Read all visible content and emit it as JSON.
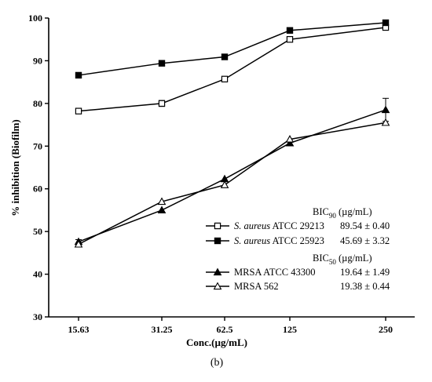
{
  "chart_data": {
    "type": "line",
    "categories": [
      "15.63",
      "31.25",
      "62.5",
      "125",
      "250"
    ],
    "ylabel": "% inhibition (Biofilm)",
    "xlabel": "Conc.(µg/mL)",
    "ylim": [
      30,
      100
    ],
    "yticks": [
      "30",
      "40",
      "50",
      "60",
      "70",
      "80",
      "90",
      "100"
    ],
    "panel_label": "(b)",
    "legend_header_90": {
      "prefix": "BIC",
      "sub": "90",
      "suffix": " (µg/mL)"
    },
    "legend_header_50": {
      "prefix": "BIC",
      "sub": "50",
      "suffix": " (µg/mL)"
    },
    "series": [
      {
        "name_italic": "S. aureus",
        "name_rest": " ATCC 29213",
        "value_text": "89.54 ± 0.40",
        "marker": "open-square",
        "values": [
          78.2,
          80.0,
          85.7,
          95.0,
          97.8
        ],
        "errors": [
          0.5,
          0.7,
          0,
          0,
          0
        ]
      },
      {
        "name_italic": "S. aureus",
        "name_rest": " ATCC 25923",
        "value_text": "45.69 ± 3.32",
        "marker": "filled-square",
        "values": [
          86.6,
          89.4,
          90.9,
          97.1,
          98.9
        ],
        "errors": [
          0,
          0,
          0,
          0,
          0
        ]
      },
      {
        "name_italic": "",
        "name_rest": "MRSA ATCC 43300",
        "value_text": "19.64 ± 1.49",
        "marker": "filled-triangle",
        "values": [
          47.6,
          55.0,
          62.3,
          70.7,
          78.5
        ],
        "errors": [
          0.5,
          0,
          0,
          0,
          2.7
        ]
      },
      {
        "name_italic": "",
        "name_rest": "MRSA 562",
        "value_text": "19.38 ± 0.44",
        "marker": "open-triangle",
        "values": [
          47.0,
          57.0,
          60.9,
          71.6,
          75.5
        ],
        "errors": [
          0,
          0,
          0,
          0,
          0
        ]
      }
    ],
    "grid": false,
    "legend_position": "bottom-right"
  }
}
